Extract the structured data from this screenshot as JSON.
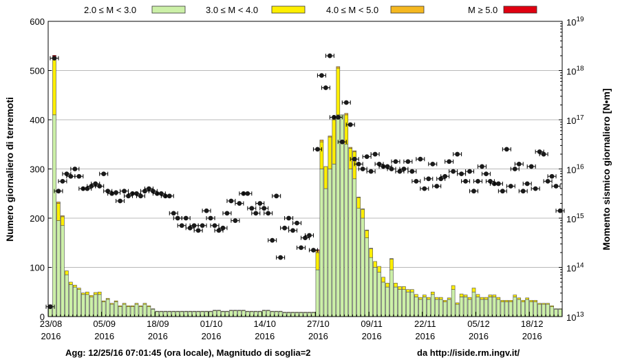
{
  "chart_data": {
    "type": "bar",
    "ylabel_left": "Numero giornaliero di terremoti",
    "ylabel_right": "Momento sismico giornaliero [N•m]",
    "ylim_left": [
      0,
      600
    ],
    "ylim_right_log10": [
      13,
      19
    ],
    "grid": true,
    "legend_position": "top",
    "left_ticks": [
      "0",
      "100",
      "200",
      "300",
      "400",
      "500",
      "600"
    ],
    "right_ticks": [
      {
        "base": "10",
        "exp": "13"
      },
      {
        "base": "10",
        "exp": "14"
      },
      {
        "base": "10",
        "exp": "15"
      },
      {
        "base": "10",
        "exp": "16"
      },
      {
        "base": "10",
        "exp": "17"
      },
      {
        "base": "10",
        "exp": "18"
      },
      {
        "base": "10",
        "exp": "19"
      }
    ],
    "x_ticks": [
      {
        "day": 0,
        "date": "23/08",
        "year": "2016"
      },
      {
        "day": 13,
        "date": "05/09",
        "year": "2016"
      },
      {
        "day": 26,
        "date": "18/09",
        "year": "2016"
      },
      {
        "day": 39,
        "date": "01/10",
        "year": "2016"
      },
      {
        "day": 52,
        "date": "14/10",
        "year": "2016"
      },
      {
        "day": 65,
        "date": "27/10",
        "year": "2016"
      },
      {
        "day": 78,
        "date": "09/11",
        "year": "2016"
      },
      {
        "day": 91,
        "date": "22/11",
        "year": "2016"
      },
      {
        "day": 104,
        "date": "05/12",
        "year": "2016"
      },
      {
        "day": 117,
        "date": "18/12",
        "year": "2016"
      }
    ],
    "series": [
      {
        "name": "2.0 ≤ M < 3.0",
        "color": "#ccf0a8",
        "values": [
          22,
          410,
          195,
          185,
          85,
          65,
          60,
          55,
          45,
          45,
          40,
          45,
          45,
          30,
          35,
          25,
          30,
          20,
          25,
          20,
          20,
          25,
          20,
          25,
          20,
          15,
          10,
          10,
          10,
          10,
          10,
          10,
          10,
          10,
          10,
          10,
          10,
          10,
          10,
          10,
          12,
          12,
          10,
          10,
          12,
          12,
          12,
          12,
          10,
          10,
          10,
          10,
          12,
          12,
          10,
          10,
          10,
          8,
          8,
          8,
          8,
          8,
          8,
          8,
          8,
          95,
          300,
          260,
          300,
          310,
          410,
          410,
          350,
          300,
          280,
          220,
          200,
          160,
          120,
          100,
          90,
          70,
          60,
          95,
          60,
          55,
          55,
          50,
          50,
          40,
          35,
          40,
          35,
          45,
          35,
          35,
          30,
          35,
          55,
          25,
          40,
          40,
          35,
          50,
          40,
          35,
          35,
          40,
          40,
          35,
          30,
          30,
          30,
          40,
          35,
          30,
          35,
          30,
          30,
          25,
          25,
          25,
          20,
          15,
          15
        ]
      },
      {
        "name": "3.0 ≤ M < 4.0",
        "color": "#ffef00",
        "values": [
          2,
          115,
          35,
          18,
          8,
          5,
          4,
          3,
          3,
          5,
          3,
          4,
          5,
          2,
          2,
          2,
          2,
          2,
          2,
          2,
          2,
          2,
          2,
          2,
          2,
          1,
          1,
          1,
          1,
          1,
          1,
          1,
          1,
          1,
          1,
          1,
          1,
          1,
          1,
          1,
          1,
          1,
          1,
          1,
          1,
          1,
          1,
          1,
          1,
          1,
          1,
          1,
          1,
          1,
          1,
          1,
          1,
          1,
          1,
          1,
          1,
          1,
          1,
          1,
          1,
          35,
          55,
          45,
          65,
          90,
          95,
          0,
          60,
          42,
          55,
          22,
          18,
          15,
          18,
          12,
          12,
          10,
          8,
          22,
          8,
          6,
          6,
          5,
          5,
          5,
          4,
          4,
          4,
          5,
          4,
          4,
          3,
          3,
          8,
          3,
          6,
          4,
          4,
          8,
          5,
          4,
          4,
          4,
          4,
          4,
          3,
          3,
          3,
          4,
          3,
          3,
          3,
          3,
          3,
          2,
          2,
          2,
          2,
          1,
          1
        ]
      },
      {
        "name": "4.0 ≤ M < 5.0",
        "color": "#f5b820",
        "values": [
          0,
          3,
          3,
          2,
          0,
          0,
          0,
          0,
          0,
          0,
          0,
          0,
          0,
          0,
          0,
          0,
          0,
          0,
          0,
          0,
          0,
          0,
          0,
          0,
          0,
          0,
          0,
          0,
          0,
          0,
          0,
          0,
          0,
          0,
          0,
          0,
          0,
          0,
          0,
          0,
          0,
          0,
          0,
          0,
          0,
          0,
          0,
          0,
          0,
          0,
          0,
          0,
          0,
          0,
          0,
          0,
          0,
          0,
          0,
          0,
          0,
          0,
          0,
          0,
          0,
          4,
          4,
          0,
          2,
          5,
          3,
          0,
          3,
          2,
          2,
          1,
          1,
          1,
          1,
          0,
          0,
          0,
          0,
          1,
          0,
          0,
          0,
          0,
          0,
          0,
          0,
          0,
          0,
          0,
          0,
          0,
          0,
          0,
          0,
          0,
          0,
          0,
          0,
          0,
          0,
          0,
          0,
          0,
          0,
          0,
          0,
          0,
          0,
          0,
          0,
          0,
          0,
          0,
          0,
          0,
          0,
          0,
          0,
          0,
          0
        ]
      },
      {
        "name": "M ≥ 5.0",
        "color": "#e00010",
        "values": [
          0,
          3,
          0,
          0,
          0,
          0,
          0,
          0,
          0,
          0,
          0,
          0,
          0,
          0,
          0,
          0,
          0,
          0,
          0,
          0,
          0,
          0,
          0,
          0,
          0,
          0,
          0,
          0,
          0,
          0,
          0,
          0,
          0,
          0,
          0,
          0,
          0,
          0,
          0,
          0,
          0,
          0,
          0,
          0,
          0,
          0,
          0,
          0,
          0,
          0,
          0,
          0,
          0,
          0,
          0,
          0,
          0,
          0,
          0,
          0,
          0,
          0,
          0,
          0,
          0,
          2,
          0,
          0,
          0,
          2,
          0,
          0,
          0,
          0,
          0,
          0,
          0,
          0,
          0,
          0,
          0,
          0,
          0,
          0,
          0,
          0,
          0,
          0,
          0,
          0,
          0,
          0,
          0,
          0,
          0,
          0,
          0,
          0,
          0,
          0,
          0,
          0,
          0,
          0,
          0,
          0,
          0,
          0,
          0,
          0,
          0,
          0,
          0,
          0,
          0,
          0,
          0,
          0,
          0,
          0,
          0,
          0,
          0,
          0,
          0
        ]
      }
    ],
    "moment_series": {
      "name": "Momento sismico giornaliero",
      "marker_color": "#1a1a1a",
      "log10_values": [
        13.2,
        18.25,
        15.55,
        15.75,
        15.9,
        15.85,
        16.0,
        15.85,
        15.6,
        15.6,
        15.65,
        15.7,
        15.65,
        15.9,
        15.55,
        15.5,
        15.52,
        15.35,
        15.55,
        15.45,
        15.5,
        15.5,
        15.45,
        15.55,
        15.6,
        15.55,
        15.5,
        15.5,
        15.45,
        15.45,
        15.1,
        15.0,
        14.85,
        15.0,
        14.8,
        14.85,
        14.75,
        14.85,
        15.15,
        15.0,
        14.85,
        14.75,
        14.8,
        15.1,
        15.35,
        14.95,
        15.3,
        15.5,
        15.5,
        15.2,
        15.1,
        15.3,
        15.2,
        15.1,
        14.55,
        15.45,
        14.2,
        14.8,
        15.0,
        14.75,
        14.9,
        14.4,
        14.6,
        14.65,
        14.35,
        16.4,
        17.9,
        17.65,
        18.3,
        17.05,
        17.05,
        16.55,
        17.35,
        16.9,
        16.2,
        16.1,
        16.0,
        16.25,
        15.95,
        16.3,
        16.1,
        16.05,
        16.05,
        16.0,
        16.15,
        15.95,
        16.0,
        16.15,
        15.95,
        15.75,
        16.2,
        15.6,
        15.8,
        16.1,
        15.65,
        15.8,
        15.85,
        16.15,
        15.95,
        16.3,
        15.9,
        15.75,
        15.95,
        15.55,
        15.75,
        16.05,
        15.9,
        15.75,
        15.7,
        15.7,
        15.55,
        16.4,
        15.65,
        16.0,
        16.1,
        15.55,
        15.7,
        16.05,
        15.6,
        16.35,
        16.3,
        15.75,
        15.85,
        15.65,
        15.15
      ]
    }
  },
  "footer": {
    "update_text": "Agg: 12/25/16 07:01:45 (ora locale), Magnitudo di soglia=2",
    "source_text": "da http://iside.rm.ingv.it/"
  }
}
